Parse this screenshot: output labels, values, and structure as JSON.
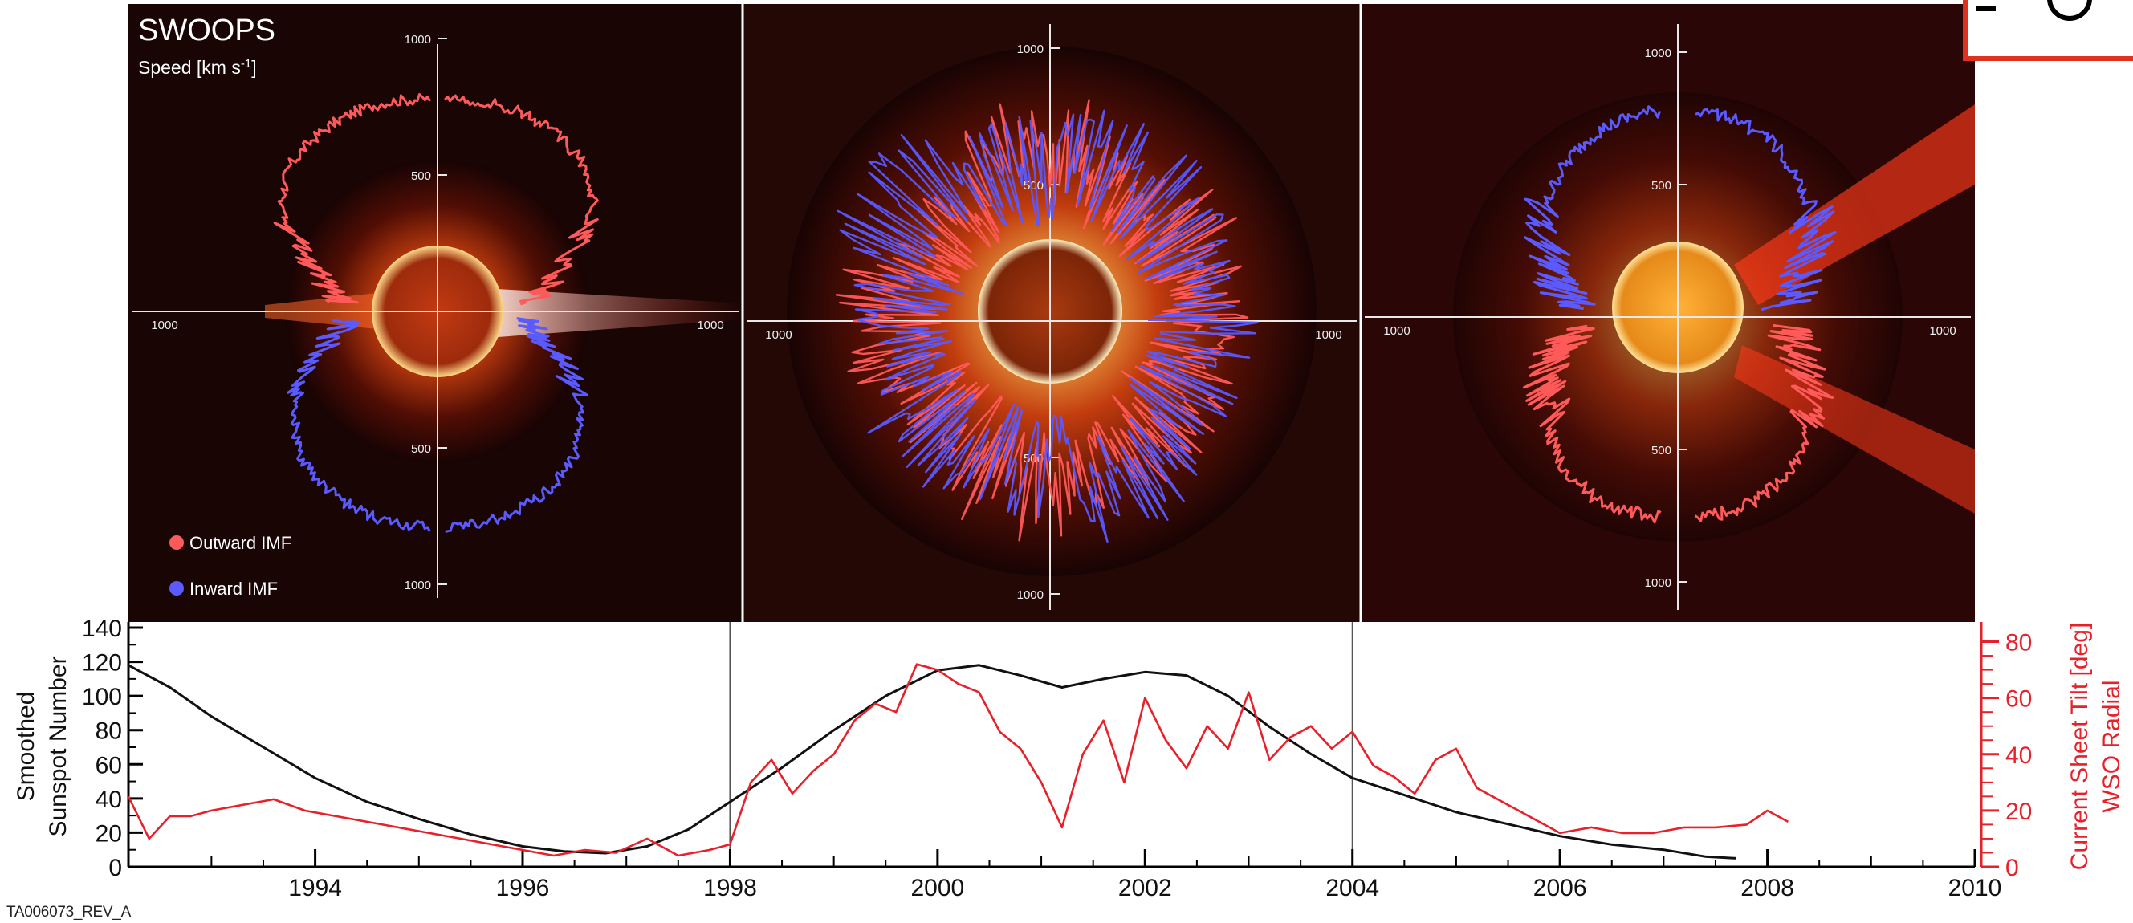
{
  "panel_text": {
    "title": "SWOOPS",
    "speed_label_main": "Speed [km s",
    "speed_label_sup": "-1",
    "speed_label_end": "]",
    "legend_outward": "Outward IMF",
    "legend_inward": "Inward IMF",
    "doc_id": "TA006073_REV_A"
  },
  "colors": {
    "outward": "#ff5a5a",
    "inward": "#5a5aff",
    "sunspot_line": "#111111",
    "tilt_line": "#e8202a",
    "panel_bg": "#1a0505",
    "divider": "#ffffff"
  },
  "polar_tick_labels": [
    "1000",
    "500",
    "500",
    "1000",
    "1000",
    "1000"
  ],
  "chart_data": [
    {
      "type": "scatter",
      "subtype": "polar",
      "title": "SWOOPS",
      "ylabel": "Speed [km s-1]",
      "rlim": [
        0,
        1000
      ],
      "ticks": [
        500,
        1000
      ],
      "series": [
        {
          "name": "Outward IMF",
          "lat_deg": [
            15,
            25,
            35,
            45,
            55,
            65,
            75,
            85
          ],
          "speed": [
            430,
            560,
            700,
            760,
            780,
            790,
            790,
            780
          ]
        },
        {
          "name": "Inward IMF",
          "lat_deg": [
            -15,
            -25,
            -35,
            -45,
            -55,
            -65,
            -75,
            -85
          ],
          "speed": [
            400,
            520,
            640,
            720,
            760,
            780,
            790,
            790
          ]
        }
      ]
    },
    {
      "type": "scatter",
      "subtype": "polar",
      "rlim": [
        0,
        1000
      ],
      "ticks": [
        500,
        1000
      ],
      "series": [
        {
          "name": "Outward IMF",
          "lat_deg": [
            10,
            30,
            50,
            70,
            90,
            110,
            130,
            150,
            170
          ],
          "speed": [
            500,
            450,
            550,
            400,
            500,
            420,
            520,
            480,
            440
          ]
        },
        {
          "name": "Inward IMF",
          "lat_deg": [
            20,
            40,
            60,
            80,
            100,
            120,
            140,
            160,
            180
          ],
          "speed": [
            480,
            520,
            470,
            600,
            450,
            500,
            430,
            560,
            470
          ]
        }
      ]
    },
    {
      "type": "scatter",
      "subtype": "polar",
      "rlim": [
        0,
        1000
      ],
      "ticks": [
        500,
        1000
      ],
      "series": [
        {
          "name": "Outward IMF",
          "lat_deg": [
            -20,
            -35,
            -50,
            -65,
            -80
          ],
          "speed": [
            500,
            600,
            700,
            750,
            760
          ]
        },
        {
          "name": "Inward IMF",
          "lat_deg": [
            20,
            35,
            50,
            65,
            80
          ],
          "speed": [
            500,
            620,
            700,
            760,
            780
          ]
        }
      ]
    },
    {
      "type": "line",
      "xlabel": "",
      "ylabel": "Smoothed Sunspot Number",
      "ylabel2": "WSO Radial Current Sheet Tilt [deg]",
      "xlim": [
        1992.2,
        2010
      ],
      "ylim": [
        0,
        140
      ],
      "ylim2": [
        0,
        85
      ],
      "x_ticks": [
        1994,
        1996,
        1998,
        2000,
        2002,
        2004,
        2006,
        2008,
        2010
      ],
      "y_ticks": [
        0,
        20,
        40,
        60,
        80,
        100,
        120,
        140
      ],
      "y2_ticks": [
        0,
        20,
        40,
        60,
        80
      ],
      "y_ticklabels": [
        "0",
        "20",
        "40",
        "60",
        "80",
        "100",
        "120",
        "140"
      ],
      "y2_ticklabels": [
        "0",
        "20",
        "40",
        "60",
        "80"
      ],
      "x_ticklabels": [
        "1994",
        "1996",
        "1998",
        "2000",
        "2002",
        "2004",
        "2006",
        "2008",
        "2010"
      ],
      "ylabel_line1": "Smoothed",
      "ylabel_line2": "Sunspot Number",
      "ylabel2_line1": "Current Sheet Tilt [deg]",
      "ylabel2_line2": "WSO Radial",
      "markers_x": [
        1998.0,
        2004.0
      ],
      "series": [
        {
          "axis": "left",
          "x": [
            1992.2,
            1992.6,
            1993.0,
            1993.5,
            1994.0,
            1994.5,
            1995.0,
            1995.5,
            1996.0,
            1996.4,
            1996.8,
            1997.2,
            1997.6,
            1998.0,
            1998.5,
            1999.0,
            1999.5,
            2000.0,
            2000.4,
            2000.8,
            2001.2,
            2001.6,
            2002.0,
            2002.4,
            2002.8,
            2003.2,
            2003.6,
            2004.0,
            2004.5,
            2005.0,
            2005.5,
            2006.0,
            2006.5,
            2007.0,
            2007.4,
            2007.7
          ],
          "y": [
            118,
            105,
            88,
            70,
            52,
            38,
            28,
            19,
            12,
            9,
            8,
            12,
            22,
            38,
            58,
            80,
            100,
            115,
            118,
            112,
            105,
            110,
            114,
            112,
            100,
            82,
            66,
            52,
            42,
            32,
            25,
            18,
            13,
            10,
            6,
            5
          ]
        },
        {
          "axis": "right",
          "x": [
            1992.2,
            1992.4,
            1992.6,
            1992.8,
            1993.0,
            1993.3,
            1993.6,
            1993.9,
            1994.2,
            1994.5,
            1994.8,
            1995.1,
            1995.4,
            1995.7,
            1996.0,
            1996.3,
            1996.6,
            1996.9,
            1997.2,
            1997.5,
            1997.8,
            1998.0,
            1998.2,
            1998.4,
            1998.6,
            1998.8,
            1999.0,
            1999.2,
            1999.4,
            1999.6,
            1999.8,
            2000.0,
            2000.2,
            2000.4,
            2000.6,
            2000.8,
            2001.0,
            2001.2,
            2001.4,
            2001.6,
            2001.8,
            2002.0,
            2002.2,
            2002.4,
            2002.6,
            2002.8,
            2003.0,
            2003.2,
            2003.4,
            2003.6,
            2003.8,
            2004.0,
            2004.2,
            2004.4,
            2004.6,
            2004.8,
            2005.0,
            2005.2,
            2005.4,
            2005.6,
            2005.8,
            2006.0,
            2006.3,
            2006.6,
            2006.9,
            2007.2,
            2007.5,
            2007.8,
            2008.0,
            2008.2
          ],
          "y": [
            25,
            10,
            18,
            18,
            20,
            22,
            24,
            20,
            18,
            16,
            14,
            12,
            10,
            8,
            6,
            4,
            6,
            5,
            10,
            4,
            6,
            8,
            30,
            38,
            26,
            34,
            40,
            52,
            58,
            55,
            72,
            70,
            65,
            62,
            48,
            42,
            30,
            14,
            40,
            52,
            30,
            60,
            45,
            35,
            50,
            42,
            62,
            38,
            46,
            50,
            42,
            48,
            36,
            32,
            26,
            38,
            42,
            28,
            24,
            20,
            16,
            12,
            14,
            12,
            12,
            14,
            14,
            15,
            20,
            16
          ]
        }
      ]
    }
  ]
}
